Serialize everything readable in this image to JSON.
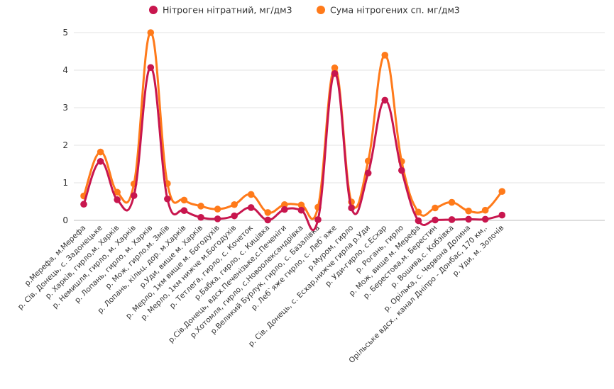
{
  "chart_data": {
    "type": "line",
    "smooth": true,
    "title": "",
    "xlabel": "",
    "ylabel": "",
    "ylim": [
      0,
      5
    ],
    "yticks": [
      0,
      1,
      2,
      3,
      4,
      5
    ],
    "grid": true,
    "legend_position": "top-center",
    "categories": [
      "р.Мерефа, м.Мерефа",
      "р. Сів. Донець, с. Задонецьке",
      "р. Харків, гирло,м. Харків",
      "р. Немишля, гирло, м. Харків",
      "р. Лопань, гирло, м. Харків",
      "р. Мож, гирло,м. Зміїв",
      "р. Лопань, кільц. дор. м.Харків",
      "р.Уди, вище м. Харків",
      "р. Мерло, 1км вище м. Богодухів",
      "р. Мерло, 1км нижче м.Богодухів",
      "р. Тетлега, гирло, с. Кочеток",
      "р.Бабка, гирло, с. Кицівка",
      "р.Сів.Донець, вдсх.Печенізьке,с.Печеніги",
      "р.Хотомля, гирло, с.Новоолександрівка",
      "р.Великий Бурлук, гирло, с. Базалівка",
      "р. Леб`яже гирло, с. Леб`яже",
      "р.Муром, гирло",
      "р. Сів. Донець, с. Есхар,нижче гирла р.Уди",
      "р. Уди-гирло, с.Есхар",
      "р. Рогань, гирло",
      "р. Мож, вище м. Мерефа",
      "р. Берестова,м. Берестин",
      "р. Вошива,с. Кобзівка",
      "р. Орілька, с. Червона Долина",
      "Орільське вдсх., канал Дніпро - Донбас, 170 км,.",
      "р. Уди, м. Золочів"
    ],
    "series": [
      {
        "name": "Нітроген нітратний, мг/дм3",
        "color": "#c8164e",
        "values": [
          0.43,
          1.57,
          0.55,
          0.66,
          4.07,
          0.57,
          0.26,
          0.08,
          0.04,
          0.12,
          0.34,
          0.01,
          0.29,
          0.27,
          0.02,
          3.91,
          0.33,
          1.26,
          3.2,
          1.33,
          -0.01,
          0.01,
          0.02,
          0.03,
          0.03,
          0.14
        ]
      },
      {
        "name": "Сума нітрогених сп. мг/дм3",
        "color": "#ff7a1a",
        "values": [
          0.65,
          1.82,
          0.75,
          0.97,
          5.0,
          0.98,
          0.54,
          0.38,
          0.3,
          0.42,
          0.69,
          0.21,
          0.42,
          0.41,
          0.35,
          4.06,
          0.49,
          1.58,
          4.4,
          1.57,
          0.22,
          0.33,
          0.48,
          0.25,
          0.27,
          0.77
        ]
      }
    ]
  }
}
